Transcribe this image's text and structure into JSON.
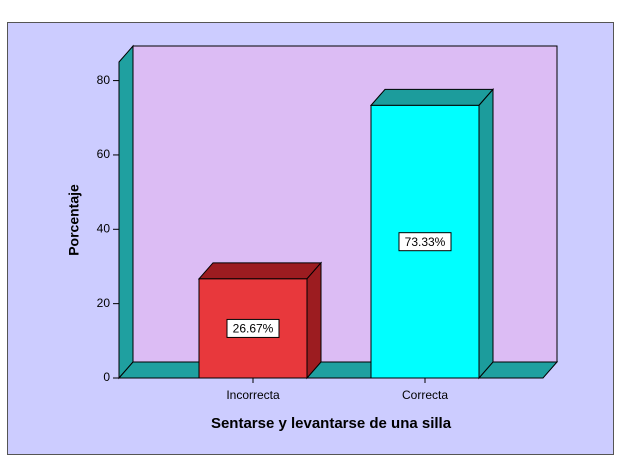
{
  "chart_data": {
    "type": "bar3d",
    "x_label": "Sentarse y levantarse de una silla",
    "y_label": "Porcentaje",
    "categories": [
      "Incorrecta",
      "Correcta"
    ],
    "values": [
      26.67,
      73.33
    ],
    "value_labels": [
      "26.67%",
      "73.33%"
    ],
    "colors": [
      "#e8383c",
      "#00ffff"
    ],
    "side_colors": [
      "#9c1c20",
      "#1c9c9c"
    ],
    "ylim": [
      0,
      85
    ],
    "yticks": [
      0,
      20,
      40,
      60,
      80
    ],
    "grid": false
  }
}
